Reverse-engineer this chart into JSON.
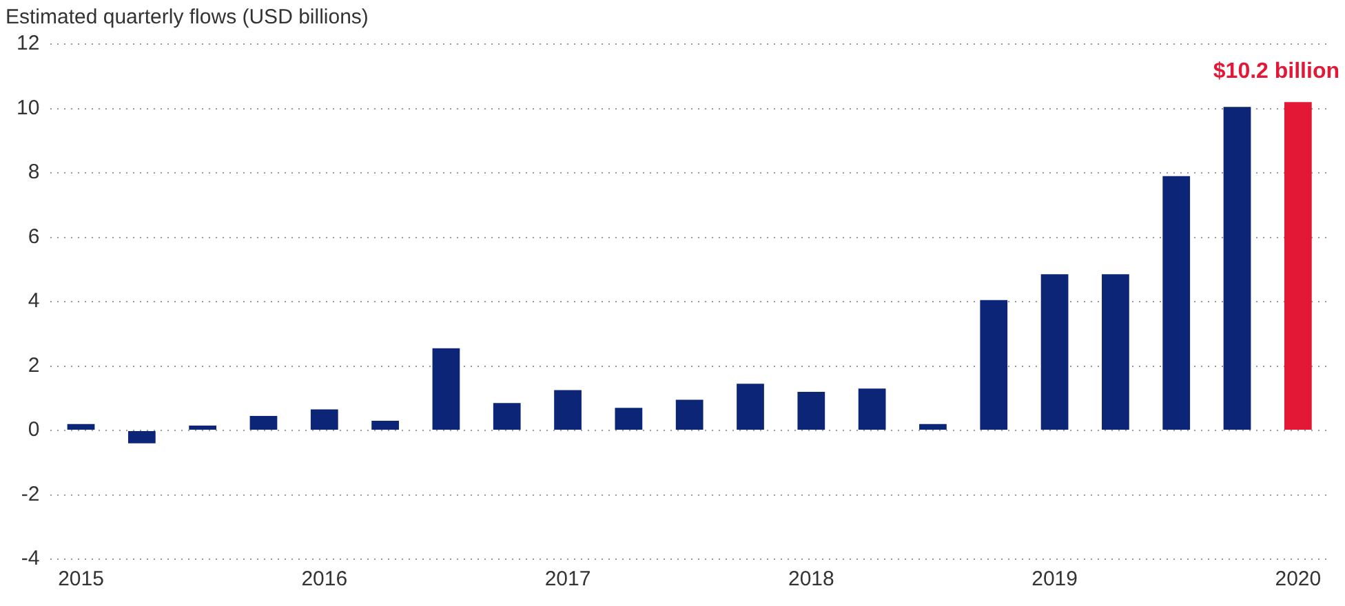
{
  "chart_data": {
    "type": "bar",
    "ylabel": "Estimated quarterly flows (USD billions)",
    "categories": [
      "2015",
      null,
      null,
      null,
      "2016",
      null,
      null,
      null,
      "2017",
      null,
      null,
      null,
      "2018",
      null,
      null,
      null,
      "2019",
      null,
      null,
      null,
      "2020"
    ],
    "values": [
      0.2,
      -0.4,
      0.15,
      0.45,
      0.65,
      0.3,
      2.55,
      0.85,
      1.25,
      0.7,
      0.95,
      1.45,
      1.2,
      1.3,
      0.2,
      4.05,
      4.85,
      4.85,
      7.9,
      10.05,
      10.2
    ],
    "colors": [
      "#0c2577",
      "#0c2577",
      "#0c2577",
      "#0c2577",
      "#0c2577",
      "#0c2577",
      "#0c2577",
      "#0c2577",
      "#0c2577",
      "#0c2577",
      "#0c2577",
      "#0c2577",
      "#0c2577",
      "#0c2577",
      "#0c2577",
      "#0c2577",
      "#0c2577",
      "#0c2577",
      "#0c2577",
      "#0c2577",
      "#e31837"
    ],
    "ylim": [
      -4,
      12
    ],
    "yticks": [
      -4,
      -2,
      0,
      2,
      4,
      6,
      8,
      10,
      12
    ],
    "grid": "y",
    "annotations": [
      {
        "text": "$10.2 billion",
        "x": "2020",
        "y": 10.2
      }
    ]
  }
}
